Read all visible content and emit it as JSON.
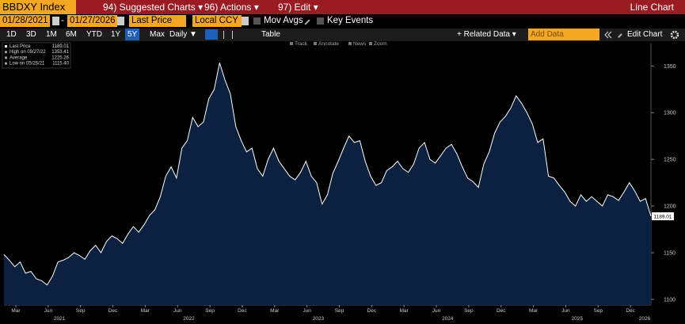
{
  "header": {
    "ticker": "BBDXY Index",
    "menus": [
      "94) Suggested Charts ▾",
      "96) Actions ▾",
      "97) Edit ▾"
    ],
    "view": "Line Chart"
  },
  "controls": {
    "start_date": "01/28/2021",
    "separator": "-",
    "end_date": "01/27/2026",
    "field": "Last Price",
    "currency": "Local CCY",
    "checkboxes": [
      "Mov Avgs",
      "Key Events"
    ]
  },
  "toolbar": {
    "periods": [
      "1D",
      "3D",
      "1M",
      "6M",
      "YTD",
      "1Y",
      "5Y",
      "Max"
    ],
    "selected_period_index": 6,
    "frequency": "Daily ▼",
    "table_button": "Table",
    "related_data": "+ Related Data ▾",
    "add_data": "Add Data",
    "edit_chart": "Edit Chart"
  },
  "chart_tools": [
    "Track",
    "Annotate",
    "News",
    "Zoom"
  ],
  "chart_data": {
    "type": "line",
    "color": "#ffffff",
    "fill": "#0c2140",
    "legend_stats": [
      {
        "label": "Last Price",
        "value": "1189.01"
      },
      {
        "label": "High on 09/27/22",
        "value": "1353.41"
      },
      {
        "label": "Average",
        "value": "1225.26"
      },
      {
        "label": "Low on 05/25/21",
        "value": "1115.40"
      }
    ],
    "values": [
      1148,
      1142,
      1135,
      1140,
      1128,
      1130,
      1122,
      1120,
      1115.4,
      1125,
      1140,
      1142,
      1145,
      1150,
      1147,
      1143,
      1152,
      1158,
      1150,
      1162,
      1168,
      1165,
      1160,
      1170,
      1178,
      1172,
      1180,
      1190,
      1196,
      1210,
      1232,
      1242,
      1230,
      1262,
      1270,
      1295,
      1285,
      1290,
      1315,
      1325,
      1353.41,
      1335,
      1320,
      1285,
      1270,
      1258,
      1262,
      1240,
      1232,
      1250,
      1262,
      1248,
      1240,
      1232,
      1228,
      1236,
      1248,
      1232,
      1225,
      1202,
      1212,
      1235,
      1248,
      1262,
      1275,
      1268,
      1270,
      1248,
      1232,
      1222,
      1225,
      1238,
      1242,
      1248,
      1240,
      1236,
      1245,
      1262,
      1268,
      1250,
      1246,
      1254,
      1262,
      1266,
      1256,
      1242,
      1230,
      1226,
      1220,
      1245,
      1258,
      1278,
      1290,
      1296,
      1305,
      1318,
      1310,
      1300,
      1288,
      1268,
      1272,
      1232,
      1230,
      1222,
      1215,
      1205,
      1200,
      1212,
      1205,
      1210,
      1205,
      1200,
      1212,
      1210,
      1206,
      1215,
      1225,
      1216,
      1205,
      1208,
      1189.01
    ],
    "xlim": [
      0,
      120
    ],
    "xticks": [
      {
        "value": 2.2,
        "label": "Mar"
      },
      {
        "value": 8.2,
        "label": "Jun"
      },
      {
        "value": 14.2,
        "label": "Sep"
      },
      {
        "value": 20.2,
        "label": "Dec"
      },
      {
        "value": 26.2,
        "label": "Mar"
      },
      {
        "value": 32.2,
        "label": "Jun"
      },
      {
        "value": 38.2,
        "label": "Sep"
      },
      {
        "value": 44.2,
        "label": "Dec"
      },
      {
        "value": 50.2,
        "label": "Mar"
      },
      {
        "value": 56.2,
        "label": "Jun"
      },
      {
        "value": 62.2,
        "label": "Sep"
      },
      {
        "value": 68.2,
        "label": "Dec"
      },
      {
        "value": 74.2,
        "label": "Mar"
      },
      {
        "value": 80.2,
        "label": "Jun"
      },
      {
        "value": 86.2,
        "label": "Sep"
      },
      {
        "value": 92.2,
        "label": "Dec"
      },
      {
        "value": 98.2,
        "label": "Mar"
      },
      {
        "value": 104.2,
        "label": "Jun"
      },
      {
        "value": 110.2,
        "label": "Sep"
      },
      {
        "value": 116.2,
        "label": "Dec"
      }
    ],
    "year_labels": [
      {
        "value": 10.3,
        "label": "2021"
      },
      {
        "value": 34.3,
        "label": "2022"
      },
      {
        "value": 58.3,
        "label": "2023"
      },
      {
        "value": 82.3,
        "label": "2024"
      },
      {
        "value": 106.3,
        "label": "2025"
      },
      {
        "value": 120,
        "label": "2026"
      }
    ],
    "ylim": [
      1094,
      1374
    ],
    "yticks": [
      1100,
      1150,
      1200,
      1250,
      1300,
      1350
    ],
    "grid": false
  }
}
